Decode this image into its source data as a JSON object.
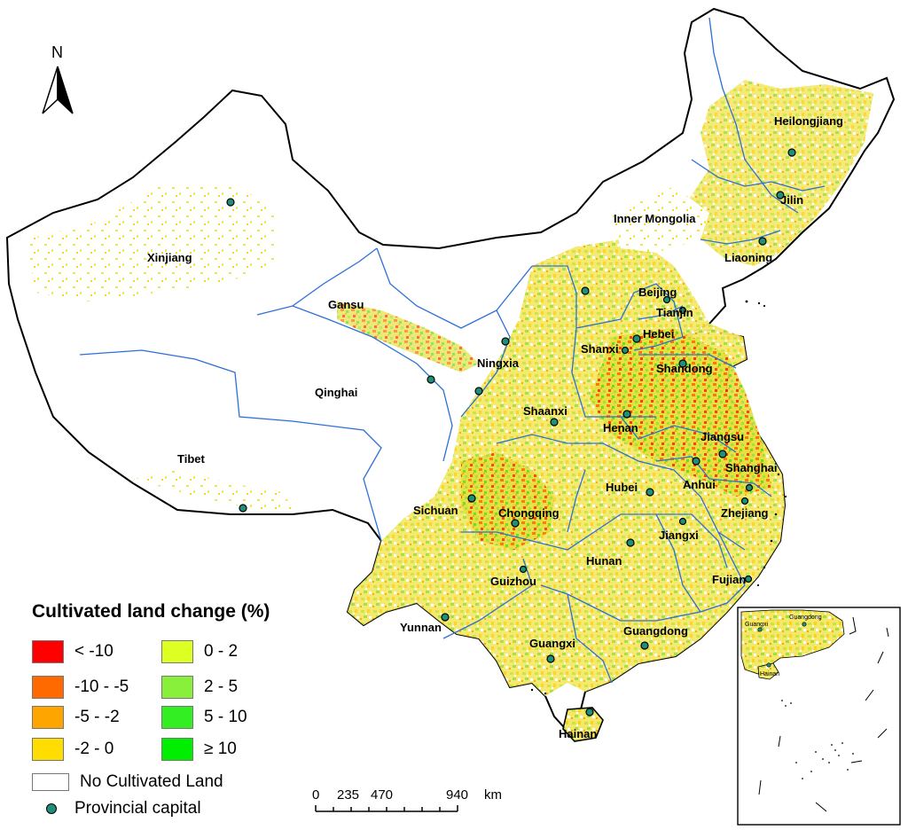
{
  "north_arrow": {
    "label": "N"
  },
  "legend": {
    "title": "Cultivated land change (%)",
    "classes": [
      {
        "label": "< -10",
        "color": "#ff0000"
      },
      {
        "label": "-10 - -5",
        "color": "#ff6a00"
      },
      {
        "label": "-5 - -2",
        "color": "#ffa500"
      },
      {
        "label": "-2 - 0",
        "color": "#ffdd00"
      },
      {
        "label": "0 - 2",
        "color": "#ddff22"
      },
      {
        "label": "2 - 5",
        "color": "#88f03a"
      },
      {
        "label": "5 - 10",
        "color": "#33ee22"
      },
      {
        "label": "≥ 10",
        "color": "#00ee00"
      }
    ],
    "no_land": {
      "label": "No Cultivated Land",
      "color": "#ffffff"
    },
    "capital": {
      "label": "Provincial capital",
      "color": "#1f8f7a"
    }
  },
  "scale_bar": {
    "ticks": [
      "0",
      "235",
      "470",
      "940"
    ],
    "unit": "km"
  },
  "provinces": [
    "Heilongjiang",
    "Jilin",
    "Inner Mongolia",
    "Liaoning",
    "Xinjiang",
    "Gansu",
    "Beijing",
    "Tianjin",
    "Hebei",
    "Ningxia",
    "Shanxi",
    "Shandong",
    "Qinghai",
    "Shaanxi",
    "Henan",
    "Jiangsu",
    "Tibet",
    "Anhui",
    "Shanghai",
    "Hubei",
    "Sichuan",
    "Chongqing",
    "Zhejiang",
    "Jiangxi",
    "Hunan",
    "Fujian",
    "Guizhou",
    "Yunnan",
    "Guangxi",
    "Guangdong",
    "Hainan"
  ],
  "inset": {
    "labels": [
      "Guangxi",
      "Guangdong",
      "Hainan"
    ]
  }
}
